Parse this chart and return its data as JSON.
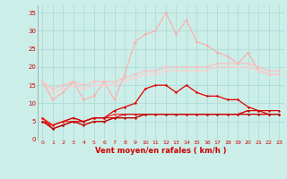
{
  "x": [
    0,
    1,
    2,
    3,
    4,
    5,
    6,
    7,
    8,
    9,
    10,
    11,
    12,
    13,
    14,
    15,
    16,
    17,
    18,
    19,
    20,
    21,
    22,
    23
  ],
  "lines": [
    {
      "name": "max_rafales",
      "color": "#ffaaaa",
      "lw": 0.8,
      "marker": "o",
      "ms": 1.8,
      "y": [
        16,
        11,
        13,
        16,
        11,
        12,
        16,
        11,
        18,
        27,
        29,
        30,
        35,
        29,
        33,
        27,
        26,
        24,
        23,
        21,
        24,
        19,
        18,
        18
      ]
    },
    {
      "name": "moy_rafales",
      "color": "#ffbbbb",
      "lw": 0.8,
      "marker": "o",
      "ms": 1.8,
      "y": [
        16,
        14,
        15,
        16,
        15,
        16,
        16,
        16,
        17,
        18,
        19,
        19,
        20,
        20,
        20,
        20,
        20,
        21,
        21,
        21,
        21,
        20,
        19,
        19
      ]
    },
    {
      "name": "moy_vent",
      "color": "#ffcccc",
      "lw": 0.8,
      "marker": "o",
      "ms": 1.8,
      "y": [
        16,
        13,
        14,
        15,
        14,
        15,
        15,
        15,
        16,
        17,
        18,
        18,
        19,
        19,
        19,
        19,
        19,
        20,
        20,
        20,
        20,
        19,
        18,
        18
      ]
    },
    {
      "name": "line_red1",
      "color": "#dd0000",
      "lw": 0.9,
      "marker": "o",
      "ms": 1.8,
      "y": [
        6,
        3,
        4,
        5,
        5,
        6,
        6,
        8,
        9,
        10,
        14,
        15,
        15,
        13,
        15,
        13,
        12,
        12,
        11,
        11,
        9,
        8,
        7,
        7
      ]
    },
    {
      "name": "line_red2",
      "color": "#ff2222",
      "lw": 0.8,
      "marker": "o",
      "ms": 1.5,
      "y": [
        6,
        4,
        5,
        6,
        5,
        6,
        6,
        7,
        7,
        7,
        7,
        7,
        7,
        7,
        7,
        7,
        7,
        7,
        7,
        7,
        8,
        8,
        8,
        8
      ]
    },
    {
      "name": "line_red3",
      "color": "#cc0000",
      "lw": 0.8,
      "marker": "o",
      "ms": 1.5,
      "y": [
        5,
        4,
        5,
        6,
        5,
        6,
        6,
        6,
        7,
        7,
        7,
        7,
        7,
        7,
        7,
        7,
        7,
        7,
        7,
        7,
        8,
        8,
        8,
        8
      ]
    },
    {
      "name": "line_red4",
      "color": "#ee1111",
      "lw": 0.8,
      "marker": "o",
      "ms": 1.5,
      "y": [
        5,
        4,
        5,
        5,
        4,
        5,
        5,
        6,
        6,
        6,
        7,
        7,
        7,
        7,
        7,
        7,
        7,
        7,
        7,
        7,
        7,
        7,
        7,
        7
      ]
    },
    {
      "name": "line_red5",
      "color": "#bb0000",
      "lw": 0.8,
      "marker": "o",
      "ms": 1.5,
      "y": [
        5,
        3,
        4,
        5,
        4,
        5,
        5,
        6,
        6,
        6,
        7,
        7,
        7,
        7,
        7,
        7,
        7,
        7,
        7,
        7,
        7,
        7,
        7,
        7
      ]
    }
  ],
  "xlabel": "Vent moyen/en rafales ( km/h )",
  "xlabel_color": "#cc0000",
  "xlabel_fontsize": 6.0,
  "xtick_fontsize": 4.5,
  "ytick_fontsize": 5.0,
  "bg_color": "#cceee8",
  "grid_color": "#aad8d4",
  "tick_color": "#cc0000",
  "ylim": [
    0,
    37
  ],
  "xlim": [
    -0.5,
    23.5
  ],
  "yticks": [
    0,
    5,
    10,
    15,
    20,
    25,
    30,
    35
  ],
  "fig_w": 3.2,
  "fig_h": 2.0,
  "dpi": 100
}
